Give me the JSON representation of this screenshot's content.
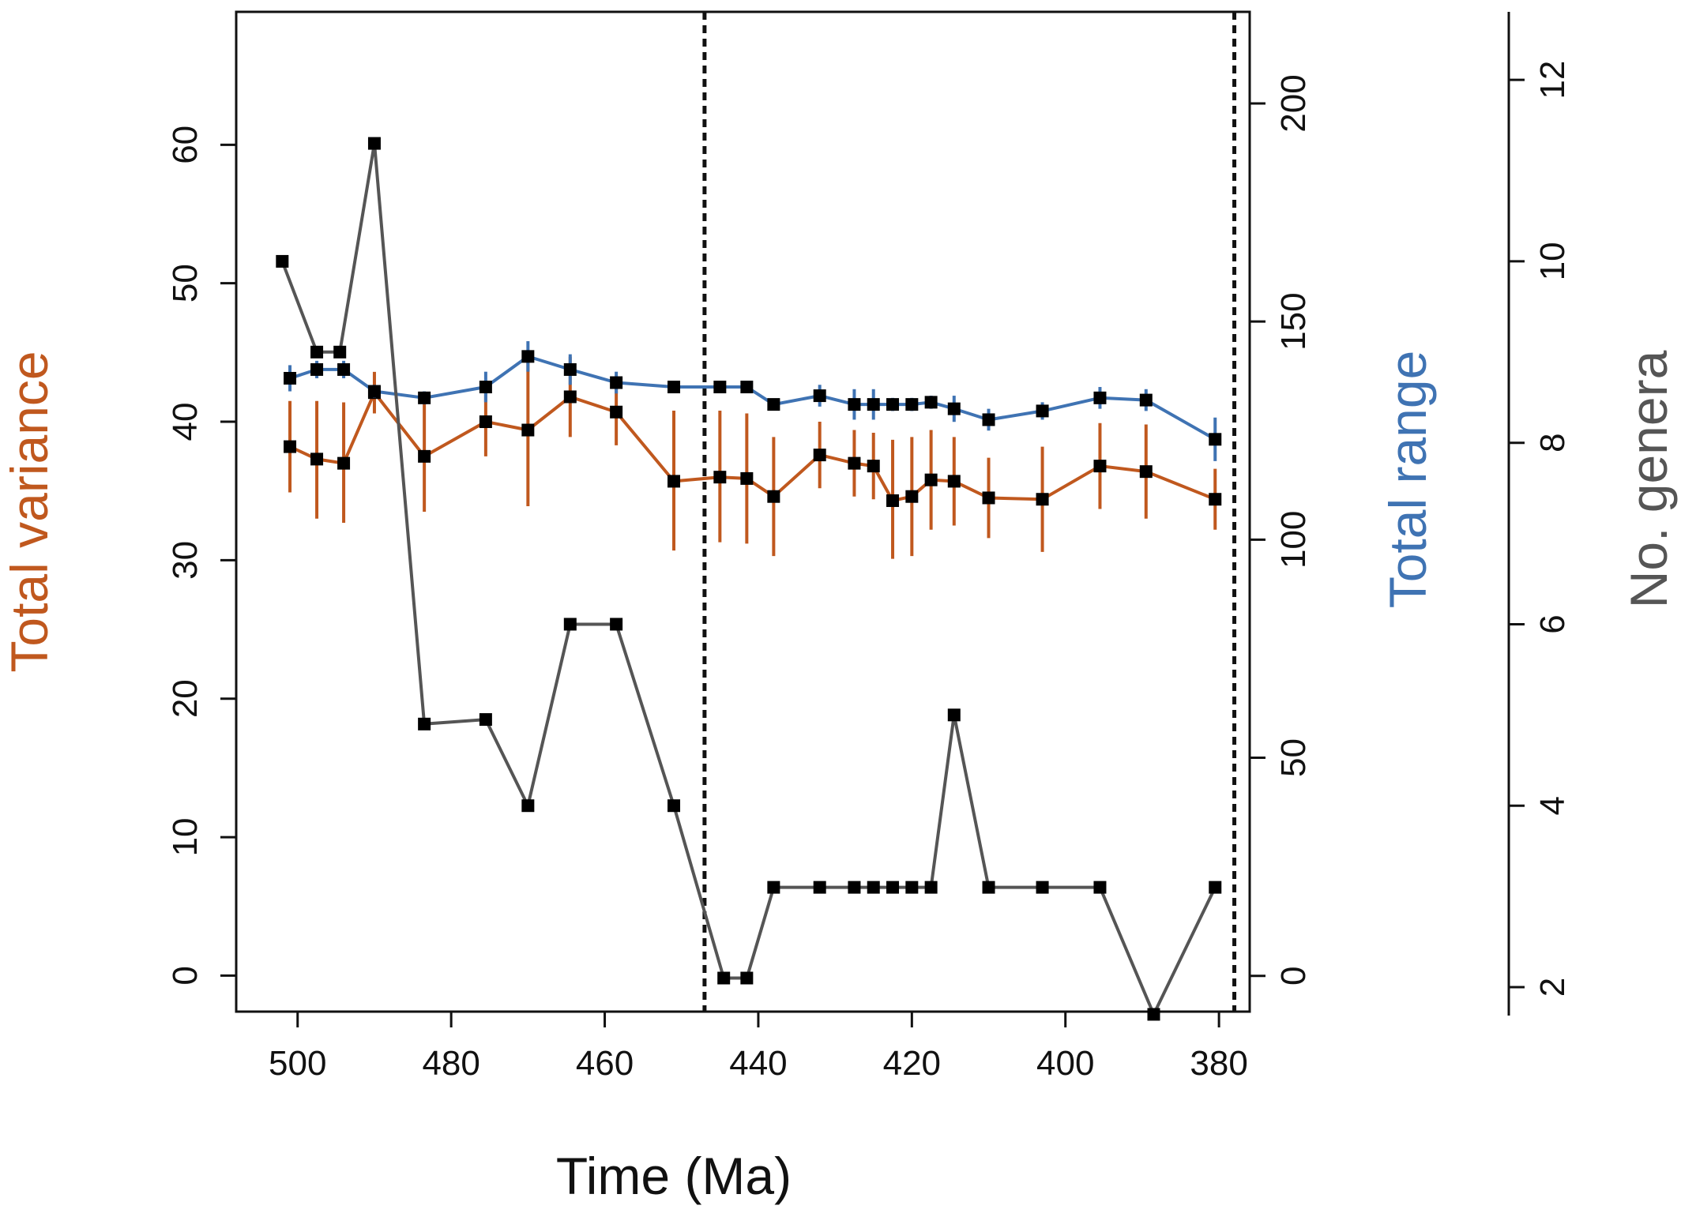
{
  "chart_data": {
    "type": "line",
    "xlabel": "Time (Ma)",
    "x_ticks": [
      500,
      480,
      460,
      440,
      420,
      400,
      380
    ],
    "xlim": [
      508,
      376
    ],
    "axes": {
      "left": {
        "label": "Total variance",
        "color": "#c0581e",
        "ticks": [
          0,
          10,
          20,
          30,
          40,
          50,
          60
        ],
        "ylim": [
          -2.6,
          69.6
        ]
      },
      "right": {
        "label": "Total range",
        "color": "#3f73b3",
        "ticks": [
          0,
          50,
          100,
          150,
          200
        ],
        "ylim": [
          -8.2,
          221
        ]
      },
      "outer": {
        "label": "No. genera",
        "color": "#555555",
        "ticks": [
          2,
          4,
          6,
          8,
          10,
          12
        ],
        "ylim": [
          1.73,
          12.75
        ]
      }
    },
    "reference_lines_x": [
      447,
      378
    ],
    "series": [
      {
        "name": "Total variance",
        "axis": "left",
        "color": "#c0581e",
        "x": [
          501,
          497.5,
          494,
          490,
          483.5,
          475.5,
          470,
          464.5,
          458.5,
          451,
          445,
          441.5,
          438,
          432,
          427.5,
          425,
          422.5,
          420,
          417.5,
          414.5,
          410,
          403,
          395.5,
          389.5,
          380.5
        ],
        "y": [
          38.2,
          37.3,
          37.0,
          42.1,
          37.5,
          40.0,
          39.4,
          41.8,
          40.7,
          35.7,
          36.0,
          35.9,
          34.6,
          37.6,
          37.0,
          36.8,
          34.3,
          34.6,
          35.8,
          35.7,
          34.5,
          34.4,
          36.8,
          36.4,
          34.4
        ],
        "y_low": [
          34.9,
          33.0,
          32.7,
          40.6,
          33.5,
          37.5,
          33.9,
          38.9,
          38.3,
          30.7,
          31.3,
          31.2,
          30.3,
          35.2,
          34.6,
          34.4,
          30.1,
          30.3,
          32.2,
          32.5,
          31.6,
          30.6,
          33.7,
          33.0,
          32.2
        ],
        "y_high": [
          41.5,
          41.5,
          41.4,
          43.6,
          41.6,
          42.6,
          44.9,
          44.7,
          43.1,
          40.8,
          40.8,
          40.6,
          38.9,
          40.0,
          39.4,
          39.2,
          38.7,
          38.9,
          39.4,
          38.9,
          37.4,
          38.2,
          39.9,
          39.8,
          36.6
        ]
      },
      {
        "name": "Total range",
        "axis": "right",
        "color": "#3f73b3",
        "x": [
          501,
          497.5,
          494,
          490,
          483.5,
          475.5,
          470,
          464.5,
          458.5,
          451,
          445,
          441.5,
          438,
          432,
          427.5,
          425,
          422.5,
          420,
          417.5,
          414.5,
          410,
          403,
          395.5,
          389.5,
          380.5
        ],
        "y": [
          137,
          139,
          139,
          134,
          132.5,
          135,
          142,
          139,
          136,
          135,
          135,
          135,
          131,
          133,
          131,
          131,
          131,
          131,
          131.5,
          130,
          127.5,
          129.5,
          132.5,
          132,
          123
        ],
        "y_low": [
          134,
          137,
          137,
          132.5,
          131,
          131.5,
          138.5,
          135.5,
          133.5,
          134,
          134,
          134,
          130,
          130.5,
          127.5,
          127.5,
          129.5,
          129.5,
          130,
          127,
          125,
          127.5,
          130,
          129.5,
          118
        ],
        "y_high": [
          140,
          141,
          141,
          135.5,
          134,
          138.5,
          145.5,
          142.5,
          138.5,
          136,
          136,
          136,
          132,
          135.5,
          134.5,
          134.5,
          132.5,
          132.5,
          133,
          133,
          130,
          131.5,
          135,
          134.5,
          128
        ]
      },
      {
        "name": "No. genera",
        "axis": "outer",
        "color": "#555555",
        "x": [
          502,
          497.5,
          494.5,
          490,
          483.5,
          475.5,
          470,
          464.5,
          458.5,
          451,
          444.5,
          441.5,
          438,
          432,
          427.5,
          425,
          422.5,
          420,
          417.5,
          414.5,
          410,
          403,
          395.5,
          388.5,
          380.5
        ],
        "y": [
          10.0,
          9.0,
          9.0,
          11.3,
          4.9,
          4.95,
          4.0,
          6.0,
          6.0,
          4.0,
          2.1,
          2.1,
          3.1,
          3.1,
          3.1,
          3.1,
          3.1,
          3.1,
          3.1,
          5.0,
          3.1,
          3.1,
          3.1,
          1.7,
          3.1
        ]
      }
    ]
  }
}
